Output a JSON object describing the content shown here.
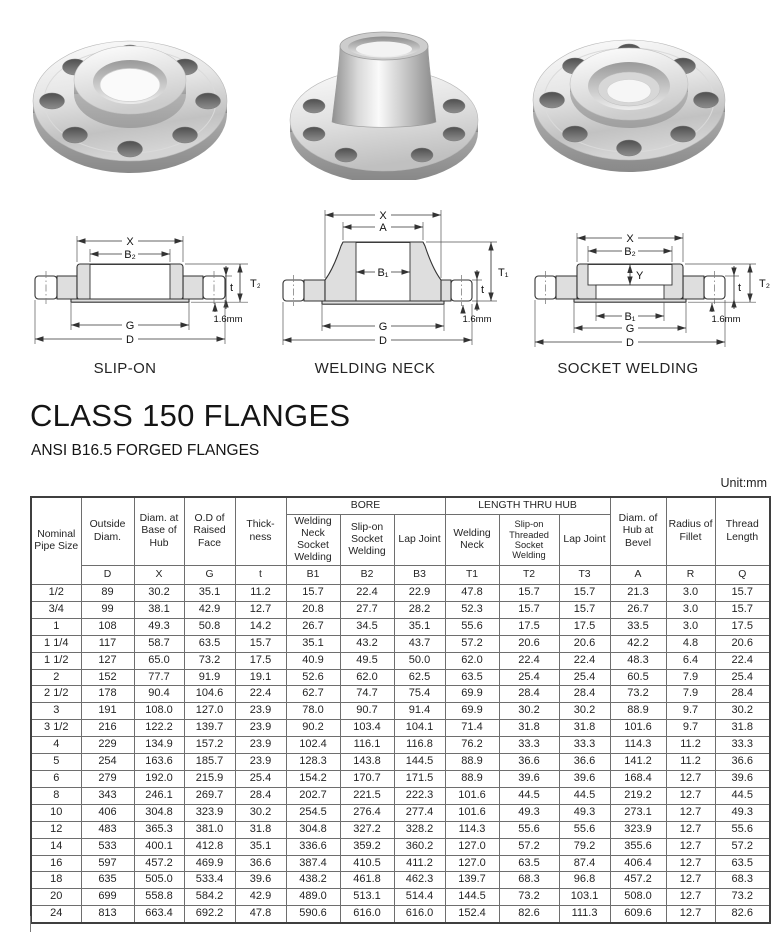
{
  "title": "CLASS 150 FLANGES",
  "subtitle": "ANSI B16.5 FORGED FLANGES",
  "unit_label": "Unit:mm",
  "diagrams": [
    {
      "label": "SLIP-ON",
      "dim_x": "X",
      "dim_b2": "B₂",
      "dim_t2": "T₂",
      "dim_t": "t",
      "dim_g": "G",
      "dim_d": "D",
      "dim_rf": "1.6mm"
    },
    {
      "label": "WELDING NECK",
      "dim_x": "X",
      "dim_a": "A",
      "dim_b1": "B₁",
      "dim_t1": "T₁",
      "dim_t": "t",
      "dim_g": "G",
      "dim_d": "D",
      "dim_rf": "1.6mm"
    },
    {
      "label": "SOCKET WELDING",
      "dim_x": "X",
      "dim_b2": "B₂",
      "dim_y": "Y",
      "dim_t2": "T₂",
      "dim_t": "t",
      "dim_b1": "B₁",
      "dim_g": "G",
      "dim_d": "D",
      "dim_rf": "1.6mm"
    }
  ],
  "table": {
    "groups": {
      "bore": "BORE",
      "length_thru_hub": "LENGTH THRU HUB"
    },
    "columns": [
      {
        "title": "Nominal Pipe Size",
        "letter": ""
      },
      {
        "title": "Outside Diam.",
        "letter": "D"
      },
      {
        "title": "Diam. at Base of Hub",
        "letter": "X"
      },
      {
        "title": "O.D of Raised Face",
        "letter": "G"
      },
      {
        "title": "Thick-ness",
        "letter": "t"
      },
      {
        "title": "Welding Neck Socket Welding",
        "letter": "B1"
      },
      {
        "title": "Slip-on Socket Welding",
        "letter": "B2"
      },
      {
        "title": "Lap Joint",
        "letter": "B3"
      },
      {
        "title": "Welding Neck",
        "letter": "T1"
      },
      {
        "title": "Slip-on Threaded Socket Welding",
        "letter": "T2"
      },
      {
        "title": "Lap Joint",
        "letter": "T3"
      },
      {
        "title": "Diam. of Hub at Bevel",
        "letter": "A"
      },
      {
        "title": "Radius of Fillet",
        "letter": "R"
      },
      {
        "title": "Thread Length",
        "letter": "Q"
      }
    ],
    "rows": [
      [
        "1/2",
        "89",
        "30.2",
        "35.1",
        "11.2",
        "15.7",
        "22.4",
        "22.9",
        "47.8",
        "15.7",
        "15.7",
        "21.3",
        "3.0",
        "15.7"
      ],
      [
        "3/4",
        "99",
        "38.1",
        "42.9",
        "12.7",
        "20.8",
        "27.7",
        "28.2",
        "52.3",
        "15.7",
        "15.7",
        "26.7",
        "3.0",
        "15.7"
      ],
      [
        "1",
        "108",
        "49.3",
        "50.8",
        "14.2",
        "26.7",
        "34.5",
        "35.1",
        "55.6",
        "17.5",
        "17.5",
        "33.5",
        "3.0",
        "17.5"
      ],
      [
        "1 1/4",
        "117",
        "58.7",
        "63.5",
        "15.7",
        "35.1",
        "43.2",
        "43.7",
        "57.2",
        "20.6",
        "20.6",
        "42.2",
        "4.8",
        "20.6"
      ],
      [
        "1 1/2",
        "127",
        "65.0",
        "73.2",
        "17.5",
        "40.9",
        "49.5",
        "50.0",
        "62.0",
        "22.4",
        "22.4",
        "48.3",
        "6.4",
        "22.4"
      ],
      [
        "2",
        "152",
        "77.7",
        "91.9",
        "19.1",
        "52.6",
        "62.0",
        "62.5",
        "63.5",
        "25.4",
        "25.4",
        "60.5",
        "7.9",
        "25.4"
      ],
      [
        "2 1/2",
        "178",
        "90.4",
        "104.6",
        "22.4",
        "62.7",
        "74.7",
        "75.4",
        "69.9",
        "28.4",
        "28.4",
        "73.2",
        "7.9",
        "28.4"
      ],
      [
        "3",
        "191",
        "108.0",
        "127.0",
        "23.9",
        "78.0",
        "90.7",
        "91.4",
        "69.9",
        "30.2",
        "30.2",
        "88.9",
        "9.7",
        "30.2"
      ],
      [
        "3 1/2",
        "216",
        "122.2",
        "139.7",
        "23.9",
        "90.2",
        "103.4",
        "104.1",
        "71.4",
        "31.8",
        "31.8",
        "101.6",
        "9.7",
        "31.8"
      ],
      [
        "4",
        "229",
        "134.9",
        "157.2",
        "23.9",
        "102.4",
        "116.1",
        "116.8",
        "76.2",
        "33.3",
        "33.3",
        "114.3",
        "11.2",
        "33.3"
      ],
      [
        "5",
        "254",
        "163.6",
        "185.7",
        "23.9",
        "128.3",
        "143.8",
        "144.5",
        "88.9",
        "36.6",
        "36.6",
        "141.2",
        "11.2",
        "36.6"
      ],
      [
        "6",
        "279",
        "192.0",
        "215.9",
        "25.4",
        "154.2",
        "170.7",
        "171.5",
        "88.9",
        "39.6",
        "39.6",
        "168.4",
        "12.7",
        "39.6"
      ],
      [
        "8",
        "343",
        "246.1",
        "269.7",
        "28.4",
        "202.7",
        "221.5",
        "222.3",
        "101.6",
        "44.5",
        "44.5",
        "219.2",
        "12.7",
        "44.5"
      ],
      [
        "10",
        "406",
        "304.8",
        "323.9",
        "30.2",
        "254.5",
        "276.4",
        "277.4",
        "101.6",
        "49.3",
        "49.3",
        "273.1",
        "12.7",
        "49.3"
      ],
      [
        "12",
        "483",
        "365.3",
        "381.0",
        "31.8",
        "304.8",
        "327.2",
        "328.2",
        "114.3",
        "55.6",
        "55.6",
        "323.9",
        "12.7",
        "55.6"
      ],
      [
        "14",
        "533",
        "400.1",
        "412.8",
        "35.1",
        "336.6",
        "359.2",
        "360.2",
        "127.0",
        "57.2",
        "79.2",
        "355.6",
        "12.7",
        "57.2"
      ],
      [
        "16",
        "597",
        "457.2",
        "469.9",
        "36.6",
        "387.4",
        "410.5",
        "411.2",
        "127.0",
        "63.5",
        "87.4",
        "406.4",
        "12.7",
        "63.5"
      ],
      [
        "18",
        "635",
        "505.0",
        "533.4",
        "39.6",
        "438.2",
        "461.8",
        "462.3",
        "139.7",
        "68.3",
        "96.8",
        "457.2",
        "12.7",
        "68.3"
      ],
      [
        "20",
        "699",
        "558.8",
        "584.2",
        "42.9",
        "489.0",
        "513.1",
        "514.4",
        "144.5",
        "73.2",
        "103.1",
        "508.0",
        "12.7",
        "73.2"
      ],
      [
        "24",
        "813",
        "663.4",
        "692.2",
        "47.8",
        "590.6",
        "616.0",
        "616.0",
        "152.4",
        "82.6",
        "111.3",
        "609.6",
        "12.7",
        "82.6"
      ]
    ]
  }
}
